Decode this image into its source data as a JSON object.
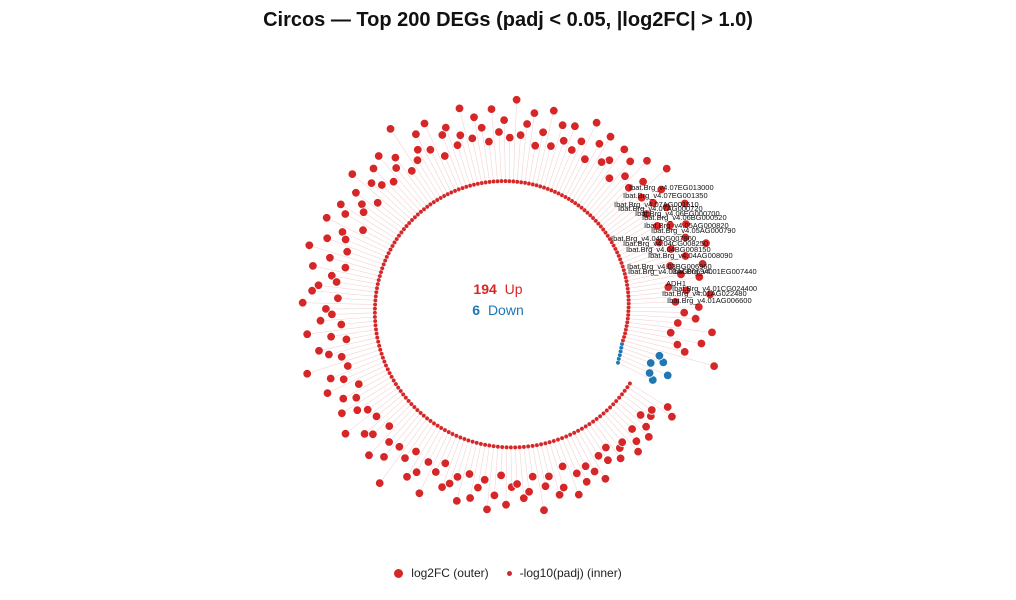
{
  "title": "Circos — Top 200 DEGs (padj < 0.05, |log2FC| > 1.0)",
  "center": {
    "up_count": "194",
    "up_label": "Up",
    "down_count": "6",
    "down_label": "Down"
  },
  "legend": {
    "outer_label": "log2FC (outer)",
    "inner_label": "-log10(padj) (inner)"
  },
  "colors": {
    "up": "#d62728",
    "down": "#1f77b4",
    "spoke": "#f2d4d4"
  },
  "chart_data": {
    "type": "scatter",
    "layout": "circular",
    "n_genes": 200,
    "n_up": 194,
    "n_down": 6,
    "outer_track": "log2FC",
    "inner_track": "-log10(padj)",
    "down_log2fc": [
      -1.4,
      -1.2,
      -1.8,
      -1.1,
      -1.5,
      -1.3
    ],
    "down_neglog10padj": [
      3.1,
      2.8,
      2.6,
      2.4,
      2.2,
      2.0
    ],
    "up_log2fc": [
      3.2,
      2.1,
      1.8,
      2.6,
      1.5,
      2.9,
      1.7,
      2.3,
      1.9,
      2.4,
      1.6,
      2.8,
      2.0,
      1.4,
      2.5,
      1.9,
      2.7,
      1.6,
      2.2,
      3.0,
      1.8,
      2.4,
      1.5,
      2.6,
      2.1,
      1.7,
      2.9,
      2.3,
      1.6,
      2.0,
      2.5,
      1.8,
      3.1,
      2.2,
      1.7,
      2.8,
      1.9,
      2.4,
      1.5,
      2.6,
      2.0,
      1.8,
      2.7,
      2.3,
      1.6,
      2.9,
      2.1,
      1.7,
      2.5,
      1.9,
      2.4,
      1.6,
      2.8,
      2.0,
      1.5,
      2.6,
      2.2,
      1.8,
      3.0,
      1.7,
      2.3,
      1.9,
      2.7,
      1.6,
      2.1,
      2.5,
      1.8,
      2.9,
      2.0,
      1.7,
      2.4,
      2.2,
      1.5,
      2.8,
      1.9,
      2.6,
      2.1,
      1.8,
      3.2,
      1.6,
      2.3,
      2.0,
      2.7,
      1.7,
      2.5,
      1.9,
      2.2,
      2.9,
      1.6,
      2.4,
      2.0,
      1.8,
      2.6,
      2.3,
      1.5,
      2.8,
      2.1,
      1.9,
      2.5,
      1.7,
      3.0,
      2.2,
      1.6,
      2.7,
      2.0,
      1.8,
      2.4,
      2.6,
      1.7,
      2.9,
      2.1,
      1.9,
      2.3,
      1.6,
      2.8,
      2.0,
      1.5,
      2.5,
      2.2,
      1.8,
      3.1,
      1.7,
      2.4,
      2.0,
      2.7,
      1.6,
      2.3,
      1.9,
      2.6,
      2.1,
      1.8,
      2.9,
      1.7,
      2.4,
      2.2,
      1.6,
      2.8,
      2.0,
      2.5,
      1.9,
      3.3,
      2.1,
      1.7,
      2.6,
      2.3,
      1.8,
      2.9,
      2.0,
      1.6,
      2.4,
      2.2,
      1.9,
      2.7,
      1.7,
      2.5,
      2.1,
      1.8,
      2.8,
      2.3,
      1.6,
      2.6,
      2.0,
      1.9,
      2.4,
      2.2,
      1.7,
      2.9,
      2.1,
      1.8,
      2.5,
      2.3,
      1.6,
      2.7,
      2.0,
      2.4,
      1.9,
      2.2,
      2.6,
      1.8,
      2.1,
      1.7,
      2.3,
      2.0,
      1.9,
      2.5,
      2.2,
      1.8,
      2.4,
      2.1,
      1.7,
      2.0,
      1.9,
      2.6,
      2.3
    ],
    "labeled_genes": [
      "Ibat.Brg_v4.07EG013000",
      "Ibat.Brg_v4.07EG001350",
      "Ibat.Brg_v4.07AG001510",
      "Ibat.Brg_v4.07AG000720",
      "Ibat.Brg_v4.06EG000700",
      "Ibat.Brg_v4.06BG000520",
      "Ibat.Brg_v4.05AG000820",
      "Ibat.Brg_v4.05AG000790",
      "Ibat.Brg_v4.04DG007960",
      "Ibat.Brg_v4.04CG008250",
      "Ibat.Brg_v4.04BG008150",
      "Ibat.Brg_v4.04AG008090",
      "Ibat.Brg_v4.03BG006960",
      "Ibat.Brg_v4.03AG006940",
      "Ibat.Brg_v4.01EG007440",
      "ADH1",
      "Ibat.Brg_v4.01CG024400",
      "Ibat.Brg_v4.01AG022480",
      "Ibat.Brg_v4.01AG006600"
    ]
  }
}
